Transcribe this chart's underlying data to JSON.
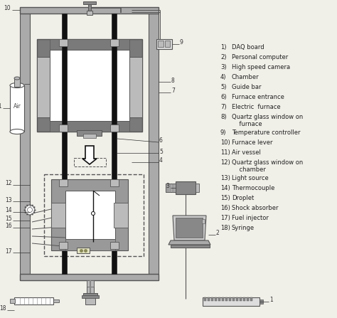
{
  "bg_color": "#f0efe8",
  "lc": "#555555",
  "black": "#111111",
  "dark_gray": "#555555",
  "med_gray": "#888888",
  "furnace_gray": "#7a7a7a",
  "light_gray": "#bbbbbb",
  "frame_gray": "#aaaaaa",
  "chamber_gray": "#999999",
  "white": "#ffffff",
  "cream": "#f0f0cc",
  "legend": [
    [
      "1)",
      "DAQ board"
    ],
    [
      "2)",
      "Personal computer"
    ],
    [
      "3)",
      "High speed camera"
    ],
    [
      "4)",
      "Chamber"
    ],
    [
      "5)",
      "Guide bar"
    ],
    [
      "6)",
      "Furnace entrance"
    ],
    [
      "7)",
      "Electric  furnace"
    ],
    [
      "8)",
      "Quartz glass window on\n    furnace"
    ],
    [
      "9)",
      "Temperature controller"
    ],
    [
      "10)",
      "Furnace lever"
    ],
    [
      "11)",
      "Air vessel"
    ],
    [
      "12)",
      "Quartz glass window on\n    chamber"
    ],
    [
      "13)",
      "Light source"
    ],
    [
      "14)",
      "Thermocouple"
    ],
    [
      "15)",
      "Droplet"
    ],
    [
      "16)",
      "Shock absorber"
    ],
    [
      "17)",
      "Fuel injector"
    ],
    [
      "18)",
      "Syringe"
    ]
  ]
}
